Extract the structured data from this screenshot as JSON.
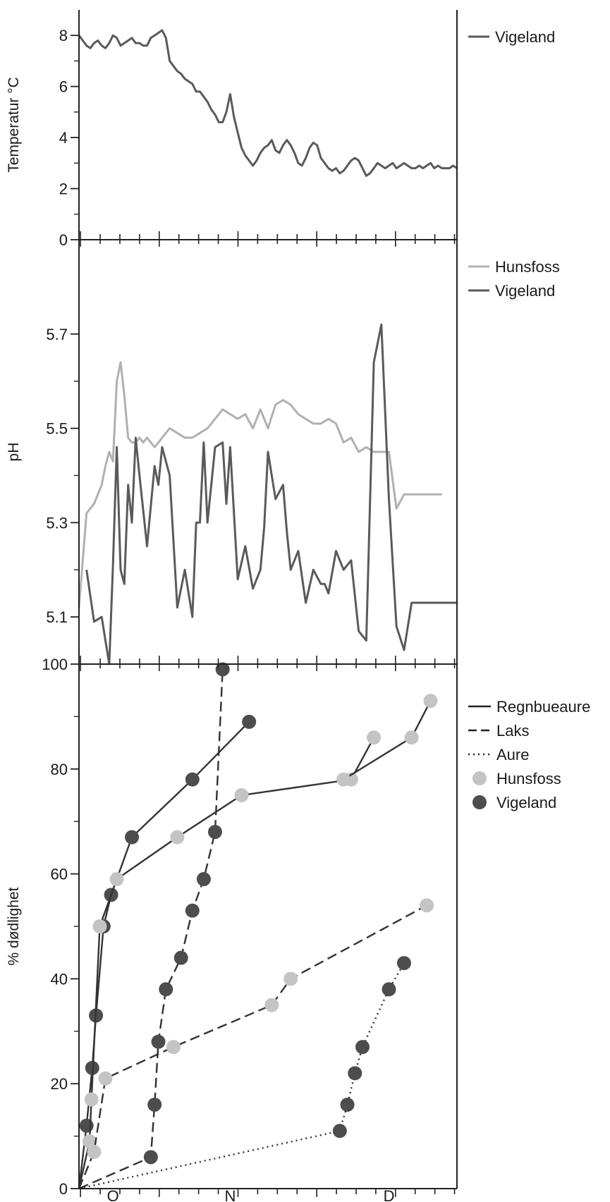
{
  "chart_data": [
    {
      "type": "line",
      "ylabel": "Temperatur °C",
      "ylim": [
        0,
        9
      ],
      "yticks": [
        0,
        2,
        4,
        6,
        8
      ],
      "series": [
        {
          "name": "Vigeland",
          "color": "#5a5a5a",
          "x": [
            0.0,
            0.01,
            0.02,
            0.03,
            0.04,
            0.05,
            0.06,
            0.07,
            0.08,
            0.09,
            0.1,
            0.11,
            0.12,
            0.13,
            0.14,
            0.15,
            0.16,
            0.17,
            0.18,
            0.19,
            0.2,
            0.21,
            0.22,
            0.23,
            0.24,
            0.25,
            0.26,
            0.27,
            0.28,
            0.29,
            0.3,
            0.31,
            0.32,
            0.33,
            0.34,
            0.35,
            0.36,
            0.37,
            0.38,
            0.39,
            0.4,
            0.41,
            0.42,
            0.43,
            0.44,
            0.45,
            0.46,
            0.47,
            0.48,
            0.49,
            0.5,
            0.51,
            0.52,
            0.53,
            0.54,
            0.55,
            0.56,
            0.57,
            0.58,
            0.59,
            0.6,
            0.61,
            0.62,
            0.63,
            0.64,
            0.65,
            0.66,
            0.67,
            0.68,
            0.69,
            0.7,
            0.71,
            0.72,
            0.73,
            0.74,
            0.75,
            0.76,
            0.77,
            0.78,
            0.79,
            0.8,
            0.81,
            0.82,
            0.83,
            0.84,
            0.85,
            0.86,
            0.87,
            0.88,
            0.89,
            0.9,
            0.91,
            0.92,
            0.93,
            0.94,
            0.95,
            0.96,
            0.97,
            0.98,
            0.99,
            1.0
          ],
          "y": [
            8.0,
            7.8,
            7.6,
            7.5,
            7.7,
            7.8,
            7.6,
            7.5,
            7.7,
            8.0,
            7.9,
            7.6,
            7.7,
            7.8,
            7.9,
            7.7,
            7.7,
            7.6,
            7.6,
            7.9,
            8.0,
            8.1,
            8.2,
            7.9,
            7.0,
            6.8,
            6.6,
            6.5,
            6.3,
            6.2,
            6.1,
            5.8,
            5.8,
            5.6,
            5.4,
            5.1,
            4.9,
            4.6,
            4.6,
            5.0,
            5.7,
            4.8,
            4.2,
            3.6,
            3.3,
            3.1,
            2.9,
            3.1,
            3.4,
            3.6,
            3.7,
            3.9,
            3.5,
            3.4,
            3.7,
            3.9,
            3.7,
            3.4,
            3.0,
            2.9,
            3.2,
            3.6,
            3.8,
            3.7,
            3.2,
            3.0,
            2.8,
            2.7,
            2.8,
            2.6,
            2.7,
            2.9,
            3.1,
            3.2,
            3.1,
            2.8,
            2.5,
            2.6,
            2.8,
            3.0,
            2.9,
            2.8,
            2.9,
            3.0,
            2.8,
            2.9,
            3.0,
            2.9,
            2.8,
            2.8,
            2.9,
            2.8,
            2.9,
            3.0,
            2.8,
            2.9,
            2.8,
            2.8,
            2.8,
            2.9,
            2.8
          ]
        }
      ]
    },
    {
      "type": "line",
      "ylabel": "pH",
      "ylim": [
        5.0,
        5.9
      ],
      "yticks": [
        5.1,
        5.3,
        5.5,
        5.7
      ],
      "series": [
        {
          "name": "Hunsfoss",
          "color": "#b0b0b0",
          "x": [
            0.0,
            0.02,
            0.04,
            0.06,
            0.07,
            0.08,
            0.09,
            0.1,
            0.11,
            0.12,
            0.13,
            0.14,
            0.15,
            0.16,
            0.17,
            0.18,
            0.2,
            0.22,
            0.24,
            0.26,
            0.28,
            0.3,
            0.32,
            0.34,
            0.36,
            0.38,
            0.4,
            0.42,
            0.44,
            0.46,
            0.48,
            0.5,
            0.52,
            0.54,
            0.56,
            0.58,
            0.6,
            0.62,
            0.64,
            0.66,
            0.68,
            0.7,
            0.72,
            0.74,
            0.76,
            0.78,
            0.8,
            0.82,
            0.84,
            0.86,
            0.88,
            0.9,
            0.92,
            0.94,
            0.96
          ],
          "y": [
            5.12,
            5.32,
            5.34,
            5.38,
            5.42,
            5.45,
            5.43,
            5.6,
            5.64,
            5.57,
            5.48,
            5.47,
            5.47,
            5.48,
            5.47,
            5.48,
            5.46,
            5.48,
            5.5,
            5.49,
            5.48,
            5.48,
            5.49,
            5.5,
            5.52,
            5.54,
            5.53,
            5.52,
            5.53,
            5.5,
            5.54,
            5.5,
            5.55,
            5.56,
            5.55,
            5.53,
            5.52,
            5.51,
            5.51,
            5.52,
            5.51,
            5.47,
            5.48,
            5.45,
            5.46,
            5.45,
            5.45,
            5.45,
            5.33,
            5.36,
            5.36,
            5.36,
            5.36,
            5.36,
            5.36
          ]
        },
        {
          "name": "Vigeland",
          "color": "#5a5a5a",
          "x": [
            0.02,
            0.04,
            0.06,
            0.07,
            0.08,
            0.09,
            0.1,
            0.11,
            0.12,
            0.13,
            0.14,
            0.15,
            0.16,
            0.18,
            0.2,
            0.21,
            0.22,
            0.24,
            0.26,
            0.28,
            0.3,
            0.31,
            0.32,
            0.33,
            0.34,
            0.36,
            0.38,
            0.39,
            0.4,
            0.42,
            0.44,
            0.46,
            0.48,
            0.49,
            0.5,
            0.52,
            0.54,
            0.55,
            0.56,
            0.58,
            0.6,
            0.62,
            0.64,
            0.65,
            0.66,
            0.68,
            0.7,
            0.72,
            0.74,
            0.76,
            0.78,
            0.8,
            0.82,
            0.84,
            0.86,
            0.88,
            0.9,
            0.92,
            0.94,
            0.96,
            0.98,
            1.0
          ],
          "y": [
            5.2,
            5.09,
            5.1,
            5.05,
            5.0,
            5.21,
            5.46,
            5.2,
            5.17,
            5.38,
            5.3,
            5.48,
            5.4,
            5.25,
            5.42,
            5.38,
            5.46,
            5.4,
            5.12,
            5.2,
            5.1,
            5.3,
            5.3,
            5.47,
            5.3,
            5.46,
            5.47,
            5.34,
            5.46,
            5.18,
            5.25,
            5.16,
            5.2,
            5.29,
            5.45,
            5.35,
            5.38,
            5.28,
            5.2,
            5.24,
            5.13,
            5.2,
            5.17,
            5.17,
            5.15,
            5.24,
            5.2,
            5.22,
            5.07,
            5.05,
            5.64,
            5.72,
            5.35,
            5.08,
            5.03,
            5.13,
            5.13,
            5.13,
            5.13,
            5.13,
            5.13,
            5.13
          ]
        }
      ]
    },
    {
      "type": "scatter",
      "ylabel": "% dødlighet",
      "ylim": [
        0,
        100
      ],
      "yticks": [
        0,
        20,
        40,
        60,
        80,
        100
      ],
      "xticklabels": [
        "O",
        "N",
        "D"
      ],
      "legend": [
        "Regnbueaure",
        "Laks",
        "Aure",
        "Hunsfoss",
        "Vigeland"
      ],
      "series": [
        {
          "name": "Vigeland",
          "species": "Regnbueaure",
          "x": [
            0.0,
            0.02,
            0.035,
            0.045,
            0.065,
            0.085,
            0.14,
            0.3,
            0.45
          ],
          "y": [
            0,
            12,
            23,
            33,
            50,
            56,
            67,
            78,
            89
          ]
        },
        {
          "name": "Hunsfoss",
          "species": "Regnbueaure",
          "x": [
            0.0,
            0.028,
            0.033,
            0.055,
            0.1,
            0.26,
            0.43,
            0.72,
            0.78
          ],
          "y": [
            0,
            9,
            17,
            50,
            59,
            67,
            75,
            78,
            86
          ]
        },
        {
          "name": "Hunsfoss",
          "species": "Regnbueaure",
          "x": [
            0.7,
            0.88,
            0.93
          ],
          "y": [
            78,
            86,
            93
          ]
        },
        {
          "name": "Vigeland",
          "species": "Laks",
          "x": [
            0.0,
            0.19,
            0.2,
            0.21,
            0.23,
            0.27,
            0.3,
            0.33,
            0.36,
            0.38
          ],
          "y": [
            0,
            6,
            16,
            28,
            38,
            44,
            53,
            59,
            68,
            99
          ]
        },
        {
          "name": "Hunsfoss",
          "species": "Laks",
          "x": [
            0.0,
            0.04,
            0.07,
            0.25,
            0.51,
            0.56,
            0.92
          ],
          "y": [
            0,
            7,
            21,
            27,
            35,
            40,
            54
          ]
        },
        {
          "name": "Vigeland",
          "species": "Aure",
          "x": [
            0.0,
            0.69,
            0.71,
            0.73,
            0.75,
            0.82,
            0.86
          ],
          "y": [
            0,
            11,
            16,
            22,
            27,
            38,
            43
          ]
        }
      ]
    }
  ]
}
